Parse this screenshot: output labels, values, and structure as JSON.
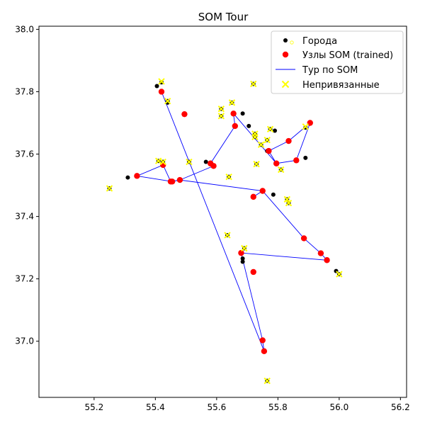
{
  "chart_data": {
    "type": "scatter",
    "title": "SOM Tour",
    "xlabel": "",
    "ylabel": "",
    "xlim": [
      55.02,
      56.22
    ],
    "ylim": [
      36.82,
      38.01
    ],
    "xticks": [
      55.2,
      55.4,
      55.6,
      55.8,
      56.0,
      56.2
    ],
    "yticks": [
      37.0,
      37.2,
      37.4,
      37.6,
      37.8,
      38.0
    ],
    "xtick_labels": [
      "55.2",
      "55.4",
      "55.6",
      "55.8",
      "56.0",
      "56.2"
    ],
    "ytick_labels": [
      "37.0",
      "37.2",
      "37.4",
      "37.6",
      "37.8",
      "38.0"
    ],
    "grid": false,
    "legend_position": "top-right",
    "colors": {
      "cities": "#000000",
      "nodes": "#ff0000",
      "tour": "#0000ff",
      "unbound": "#ffff00"
    },
    "legend": [
      {
        "key": "cities",
        "label": "Города"
      },
      {
        "key": "nodes",
        "label": "Узлы SOM (trained)"
      },
      {
        "key": "tour",
        "label": "Тур по SOM"
      },
      {
        "key": "unbound",
        "label": "Непривязанные"
      }
    ],
    "cities": [
      [
        55.42,
        37.83
      ],
      [
        55.405,
        37.818
      ],
      [
        55.44,
        37.765
      ],
      [
        55.44,
        37.77
      ],
      [
        55.72,
        37.825
      ],
      [
        55.65,
        37.765
      ],
      [
        55.615,
        37.745
      ],
      [
        55.615,
        37.722
      ],
      [
        55.685,
        37.73
      ],
      [
        55.705,
        37.69
      ],
      [
        55.775,
        37.68
      ],
      [
        55.79,
        37.675
      ],
      [
        55.89,
        37.685
      ],
      [
        55.725,
        37.665
      ],
      [
        55.725,
        37.655
      ],
      [
        55.765,
        37.645
      ],
      [
        55.745,
        37.63
      ],
      [
        55.765,
        37.61
      ],
      [
        55.89,
        37.588
      ],
      [
        55.73,
        37.568
      ],
      [
        55.81,
        37.55
      ],
      [
        55.565,
        37.575
      ],
      [
        55.51,
        37.575
      ],
      [
        55.41,
        37.578
      ],
      [
        55.425,
        37.575
      ],
      [
        55.64,
        37.527
      ],
      [
        55.31,
        37.525
      ],
      [
        55.25,
        37.49
      ],
      [
        55.785,
        37.47
      ],
      [
        55.83,
        37.455
      ],
      [
        55.835,
        37.443
      ],
      [
        55.635,
        37.34
      ],
      [
        55.69,
        37.298
      ],
      [
        55.685,
        37.265
      ],
      [
        55.685,
        37.255
      ],
      [
        55.99,
        37.225
      ],
      [
        56.0,
        37.215
      ],
      [
        55.765,
        36.873
      ]
    ],
    "nodes": [
      [
        55.42,
        37.8
      ],
      [
        55.495,
        37.728
      ],
      [
        55.655,
        37.73
      ],
      [
        55.66,
        37.69
      ],
      [
        55.905,
        37.7
      ],
      [
        55.835,
        37.642
      ],
      [
        55.77,
        37.61
      ],
      [
        55.86,
        37.58
      ],
      [
        55.795,
        37.57
      ],
      [
        55.58,
        37.57
      ],
      [
        55.59,
        37.562
      ],
      [
        55.425,
        37.565
      ],
      [
        55.34,
        37.53
      ],
      [
        55.45,
        37.512
      ],
      [
        55.455,
        37.512
      ],
      [
        55.48,
        37.517
      ],
      [
        55.75,
        37.482
      ],
      [
        55.72,
        37.463
      ],
      [
        55.885,
        37.33
      ],
      [
        55.94,
        37.282
      ],
      [
        55.96,
        37.26
      ],
      [
        55.68,
        37.283
      ],
      [
        55.72,
        37.222
      ],
      [
        55.75,
        37.003
      ],
      [
        55.755,
        36.968
      ]
    ],
    "tour": [
      [
        55.42,
        37.8
      ],
      [
        55.755,
        36.968
      ],
      [
        55.75,
        37.003
      ],
      [
        55.68,
        37.283
      ],
      [
        55.96,
        37.26
      ],
      [
        55.94,
        37.282
      ],
      [
        55.885,
        37.33
      ],
      [
        55.75,
        37.482
      ],
      [
        55.72,
        37.463
      ],
      [
        55.75,
        37.482
      ],
      [
        55.48,
        37.517
      ],
      [
        55.455,
        37.512
      ],
      [
        55.34,
        37.53
      ],
      [
        55.425,
        37.565
      ],
      [
        55.45,
        37.512
      ],
      [
        55.48,
        37.517
      ],
      [
        55.59,
        37.562
      ],
      [
        55.58,
        37.57
      ],
      [
        55.66,
        37.69
      ],
      [
        55.655,
        37.73
      ],
      [
        55.795,
        37.57
      ],
      [
        55.77,
        37.61
      ],
      [
        55.795,
        37.57
      ],
      [
        55.86,
        37.58
      ],
      [
        55.905,
        37.7
      ],
      [
        55.835,
        37.642
      ],
      [
        55.77,
        37.61
      ]
    ],
    "unbound": [
      [
        55.42,
        37.833
      ],
      [
        55.44,
        37.77
      ],
      [
        55.72,
        37.825
      ],
      [
        55.65,
        37.765
      ],
      [
        55.615,
        37.745
      ],
      [
        55.615,
        37.722
      ],
      [
        55.775,
        37.68
      ],
      [
        55.89,
        37.688
      ],
      [
        55.725,
        37.665
      ],
      [
        55.725,
        37.655
      ],
      [
        55.765,
        37.645
      ],
      [
        55.745,
        37.63
      ],
      [
        55.73,
        37.568
      ],
      [
        55.81,
        37.55
      ],
      [
        55.51,
        37.575
      ],
      [
        55.41,
        37.578
      ],
      [
        55.425,
        37.575
      ],
      [
        55.64,
        37.527
      ],
      [
        55.25,
        37.49
      ],
      [
        55.83,
        37.455
      ],
      [
        55.835,
        37.443
      ],
      [
        55.635,
        37.34
      ],
      [
        55.69,
        37.298
      ],
      [
        56.0,
        37.215
      ],
      [
        55.765,
        36.873
      ]
    ]
  }
}
